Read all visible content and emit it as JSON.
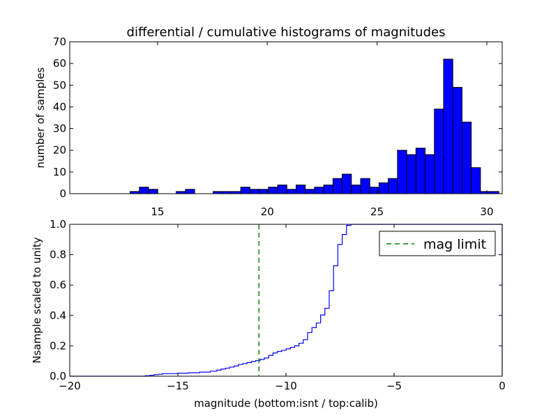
{
  "chart_data": [
    {
      "type": "bar",
      "title": "differential / cumulative histograms of magnitudes",
      "xlabel": "",
      "ylabel": "number of samples",
      "xlim": [
        11.0,
        30.7
      ],
      "ylim": [
        0,
        70
      ],
      "x_axis_position": "top",
      "xticks": [
        15,
        20,
        25,
        30
      ],
      "yticks": [
        0,
        10,
        20,
        30,
        40,
        50,
        60,
        70
      ],
      "bar_color": "#0000ff",
      "bin_width": 0.42,
      "bins": [
        {
          "x": 13.75,
          "count": 1
        },
        {
          "x": 14.17,
          "count": 3
        },
        {
          "x": 14.59,
          "count": 2
        },
        {
          "x": 15.85,
          "count": 1
        },
        {
          "x": 16.27,
          "count": 2
        },
        {
          "x": 17.53,
          "count": 1
        },
        {
          "x": 17.95,
          "count": 1
        },
        {
          "x": 18.37,
          "count": 1
        },
        {
          "x": 18.79,
          "count": 3
        },
        {
          "x": 19.21,
          "count": 2
        },
        {
          "x": 19.63,
          "count": 2
        },
        {
          "x": 20.05,
          "count": 3
        },
        {
          "x": 20.47,
          "count": 4
        },
        {
          "x": 20.89,
          "count": 2
        },
        {
          "x": 21.31,
          "count": 4
        },
        {
          "x": 21.73,
          "count": 2
        },
        {
          "x": 22.15,
          "count": 3
        },
        {
          "x": 22.57,
          "count": 4
        },
        {
          "x": 22.99,
          "count": 7
        },
        {
          "x": 23.41,
          "count": 9
        },
        {
          "x": 23.83,
          "count": 4
        },
        {
          "x": 24.25,
          "count": 7
        },
        {
          "x": 24.67,
          "count": 3
        },
        {
          "x": 25.09,
          "count": 5
        },
        {
          "x": 25.51,
          "count": 7
        },
        {
          "x": 25.93,
          "count": 20
        },
        {
          "x": 26.35,
          "count": 18
        },
        {
          "x": 26.77,
          "count": 21
        },
        {
          "x": 27.19,
          "count": 18
        },
        {
          "x": 27.61,
          "count": 39
        },
        {
          "x": 28.03,
          "count": 62
        },
        {
          "x": 28.45,
          "count": 49
        },
        {
          "x": 28.87,
          "count": 33
        },
        {
          "x": 29.29,
          "count": 12
        },
        {
          "x": 29.71,
          "count": 1
        },
        {
          "x": 30.13,
          "count": 1
        }
      ]
    },
    {
      "type": "line",
      "drawstyle": "steps",
      "title": "",
      "xlabel": "magnitude (bottom:isnt / top:calib)",
      "ylabel": "Nsample scaled to unity",
      "xlim": [
        -20,
        0
      ],
      "ylim": [
        0.0,
        1.0
      ],
      "xticks": [
        -20,
        -15,
        -10,
        -5,
        0
      ],
      "xtick_labels": [
        "−20",
        "−15",
        "−10",
        "−5",
        "0"
      ],
      "yticks": [
        0.0,
        0.2,
        0.4,
        0.6,
        0.8,
        1.0
      ],
      "ytick_labels": [
        "0.0",
        "0.2",
        "0.4",
        "0.6",
        "0.8",
        "1.0"
      ],
      "series": [
        {
          "color": "#0000ff",
          "x": [
            -20.0,
            -16.5,
            -16.3,
            -16.1,
            -15.9,
            -15.7,
            -15.0,
            -14.5,
            -14.0,
            -13.5,
            -13.2,
            -13.0,
            -12.8,
            -12.6,
            -12.4,
            -12.2,
            -12.0,
            -11.8,
            -11.6,
            -11.4,
            -11.2,
            -11.0,
            -10.8,
            -10.6,
            -10.4,
            -10.2,
            -10.0,
            -9.8,
            -9.6,
            -9.4,
            -9.2,
            -9.0,
            -8.8,
            -8.6,
            -8.4,
            -8.2,
            -8.0,
            -7.8,
            -7.6,
            -7.4,
            -7.2,
            -7.0,
            -6.8,
            0.0
          ],
          "y": [
            0.0,
            0.003,
            0.006,
            0.01,
            0.013,
            0.017,
            0.02,
            0.023,
            0.027,
            0.033,
            0.04,
            0.047,
            0.053,
            0.06,
            0.067,
            0.077,
            0.083,
            0.09,
            0.097,
            0.103,
            0.11,
            0.12,
            0.137,
            0.153,
            0.163,
            0.17,
            0.18,
            0.19,
            0.2,
            0.217,
            0.24,
            0.287,
            0.32,
            0.35,
            0.403,
            0.447,
            0.563,
            0.727,
            0.867,
            0.933,
            0.993,
            1.0,
            1.0,
            1.0
          ]
        }
      ],
      "reference_lines": [
        {
          "label": "mag limit",
          "x": -11.25,
          "color": "#008000",
          "style": "dashed"
        }
      ],
      "legend": {
        "position": "top-right",
        "entries": [
          "mag limit"
        ]
      }
    }
  ]
}
